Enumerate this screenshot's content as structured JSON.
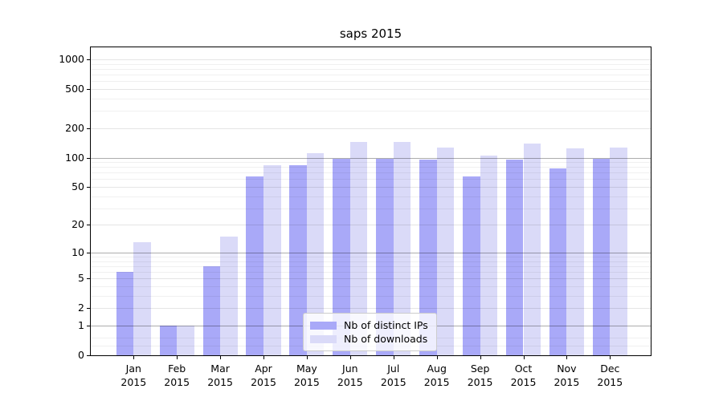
{
  "chart_data": {
    "type": "bar",
    "title": "saps 2015",
    "xlabel": "",
    "ylabel": "",
    "year_label": "2015",
    "categories": [
      "Jan",
      "Feb",
      "Mar",
      "Apr",
      "May",
      "Jun",
      "Jul",
      "Aug",
      "Sep",
      "Oct",
      "Nov",
      "Dec"
    ],
    "series": [
      {
        "name": "Nb of distinct IPs",
        "color": "#a9a9f8",
        "values": [
          6,
          1,
          7,
          64,
          84,
          98,
          98,
          95,
          64,
          96,
          78,
          98
        ]
      },
      {
        "name": "Nb of downloads",
        "color": "#dadaf8",
        "values": [
          13,
          1,
          15,
          84,
          110,
          145,
          145,
          126,
          104,
          140,
          124,
          126
        ]
      }
    ],
    "yscale": "log1p",
    "ylim": [
      0,
      1300
    ],
    "yticks": [
      0,
      1,
      2,
      5,
      10,
      20,
      50,
      100,
      200,
      500,
      1000
    ],
    "grid": {
      "on": true,
      "major": [
        1,
        10,
        100
      ],
      "mid": [
        2,
        5,
        20,
        50,
        200,
        500,
        1000
      ],
      "minor": [
        0.25,
        0.5,
        3,
        4,
        6,
        7,
        8,
        9,
        30,
        40,
        60,
        70,
        80,
        90,
        300,
        400,
        600,
        700,
        800,
        900
      ]
    },
    "legend_position": "lower center"
  }
}
